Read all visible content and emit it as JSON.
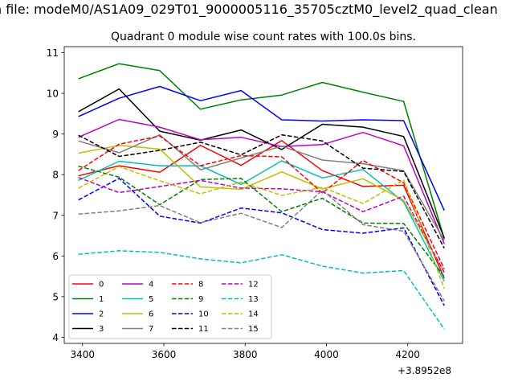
{
  "chart_data": {
    "type": "line",
    "suptitle": "Quadrant 0 module wise count rates with 100.0s bins.",
    "fileline": "n file: modeM0/AS1A09_029T01_9000005116_35705cztM0_level2_quad_clean",
    "title": "Quadrant 0 module wise count rates with 100.0s bins.",
    "x_offset_label": "+3.8952e8",
    "x": [
      3390,
      3490,
      3590,
      3690,
      3790,
      3890,
      3990,
      4090,
      4190,
      4290
    ],
    "xlim": [
      3355,
      4335
    ],
    "ylim": [
      3.85,
      11.15
    ],
    "xticks": [
      3400,
      3600,
      3800,
      4000,
      4200
    ],
    "yticks": [
      4,
      5,
      6,
      7,
      8,
      9,
      10,
      11
    ],
    "legend_position": "lower-left",
    "series": [
      {
        "name": "0",
        "color": "#ff0000",
        "dash": "solid",
        "values": [
          7.97,
          8.22,
          8.06,
          8.72,
          8.23,
          8.84,
          8.1,
          7.71,
          7.74,
          5.45
        ]
      },
      {
        "name": "1",
        "color": "#008000",
        "dash": "solid",
        "values": [
          10.36,
          10.73,
          10.56,
          9.61,
          9.84,
          9.96,
          10.27,
          10.03,
          9.8,
          6.42
        ]
      },
      {
        "name": "2",
        "color": "#0000ff",
        "dash": "solid",
        "values": [
          9.43,
          9.88,
          10.17,
          9.82,
          10.07,
          9.35,
          9.32,
          9.35,
          9.33,
          7.12
        ]
      },
      {
        "name": "3",
        "color": "#000000",
        "dash": "solid",
        "values": [
          9.55,
          10.11,
          9.07,
          8.85,
          9.1,
          8.62,
          9.24,
          9.17,
          8.94,
          6.44
        ]
      },
      {
        "name": "4",
        "color": "#bf00bf",
        "dash": "solid",
        "values": [
          8.92,
          9.36,
          9.17,
          8.86,
          8.92,
          8.69,
          8.74,
          9.04,
          8.71,
          6.3
        ]
      },
      {
        "name": "5",
        "color": "#00bfbf",
        "dash": "solid",
        "values": [
          7.86,
          8.33,
          8.22,
          8.22,
          7.76,
          8.34,
          7.92,
          8.13,
          7.33,
          5.38
        ]
      },
      {
        "name": "6",
        "color": "#bfbf00",
        "dash": "solid",
        "values": [
          8.53,
          8.72,
          8.63,
          7.7,
          7.64,
          8.07,
          7.65,
          7.9,
          7.37,
          5.6
        ]
      },
      {
        "name": "7",
        "color": "#808080",
        "dash": "solid",
        "values": [
          8.83,
          8.54,
          8.98,
          8.12,
          8.41,
          8.7,
          8.36,
          8.27,
          8.1,
          6.38
        ]
      },
      {
        "name": "8",
        "color": "#ff0000",
        "dash": "dashed",
        "values": [
          8.1,
          8.75,
          8.95,
          8.22,
          8.47,
          8.44,
          7.55,
          8.35,
          7.8,
          5.68
        ]
      },
      {
        "name": "9",
        "color": "#008000",
        "dash": "dashed",
        "values": [
          8.21,
          7.94,
          7.26,
          7.88,
          7.91,
          7.09,
          7.42,
          6.81,
          6.8,
          5.49
        ]
      },
      {
        "name": "10",
        "color": "#0000ff",
        "dash": "dashed",
        "values": [
          7.38,
          7.91,
          6.98,
          6.81,
          7.18,
          7.06,
          6.65,
          6.56,
          6.69,
          4.78
        ]
      },
      {
        "name": "11",
        "color": "#000000",
        "dash": "dashed",
        "values": [
          8.97,
          8.45,
          8.6,
          8.8,
          8.49,
          8.98,
          8.83,
          8.16,
          8.08,
          6.19
        ]
      },
      {
        "name": "12",
        "color": "#bf00bf",
        "dash": "dashed",
        "values": [
          7.93,
          7.56,
          7.71,
          7.86,
          7.67,
          7.65,
          7.58,
          7.09,
          7.47,
          5.59
        ]
      },
      {
        "name": "13",
        "color": "#00bfbf",
        "dash": "dashed",
        "values": [
          6.04,
          6.13,
          6.09,
          5.93,
          5.83,
          6.03,
          5.75,
          5.58,
          5.64,
          4.2
        ]
      },
      {
        "name": "14",
        "color": "#bfbf00",
        "dash": "dashed",
        "values": [
          7.67,
          8.2,
          7.85,
          7.53,
          7.82,
          7.49,
          7.69,
          7.29,
          7.87,
          5.2
        ]
      },
      {
        "name": "15",
        "color": "#808080",
        "dash": "dashed",
        "values": [
          7.03,
          7.11,
          7.24,
          6.82,
          7.05,
          6.7,
          7.62,
          6.77,
          6.61,
          4.89
        ]
      }
    ]
  }
}
